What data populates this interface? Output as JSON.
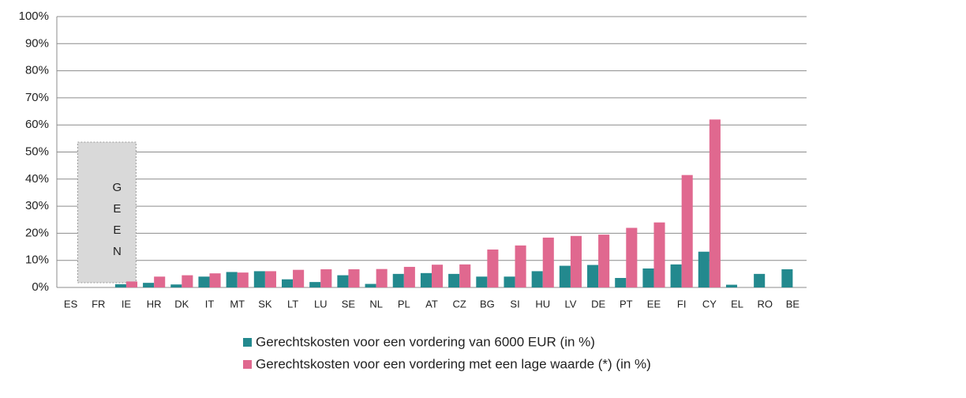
{
  "chart_data": {
    "type": "bar",
    "categories": [
      "ES",
      "FR",
      "IE",
      "HR",
      "DK",
      "IT",
      "MT",
      "SK",
      "LT",
      "LU",
      "SE",
      "NL",
      "PL",
      "AT",
      "CZ",
      "BG",
      "SI",
      "HU",
      "LV",
      "DE",
      "PT",
      "EE",
      "FI",
      "CY",
      "EL",
      "RO",
      "BE"
    ],
    "series": [
      {
        "name": "Gerechtskosten voor een vordering van 6000 EUR (in %)",
        "color": "#23898e",
        "values": [
          null,
          null,
          1.2,
          1.7,
          1.1,
          4,
          5.7,
          6,
          3,
          2,
          4.5,
          1.3,
          5,
          5.3,
          5,
          4,
          4,
          6,
          8,
          8.3,
          3.5,
          7,
          8.5,
          13.2,
          1,
          5,
          6.7
        ]
      },
      {
        "name": "Gerechtskosten voor een vordering met een lage waarde (*) (in %)",
        "color": "#e0688f",
        "values": [
          null,
          null,
          2.2,
          4,
          4.5,
          5.2,
          5.5,
          6,
          6.5,
          6.7,
          6.7,
          6.8,
          7.6,
          8.4,
          8.5,
          14,
          15.5,
          18.4,
          19,
          19.5,
          22,
          24,
          41.5,
          62,
          null,
          null,
          null
        ]
      }
    ],
    "annotation": "GEEN",
    "ylim": [
      0,
      100
    ],
    "yticks": [
      {
        "value": 0,
        "label": "0%"
      },
      {
        "value": 10,
        "label": "10%"
      },
      {
        "value": 20,
        "label": "20%"
      },
      {
        "value": 30,
        "label": "30%"
      },
      {
        "value": 40,
        "label": "40%"
      },
      {
        "value": 50,
        "label": "50%"
      },
      {
        "value": 60,
        "label": "60%"
      },
      {
        "value": 70,
        "label": "70%"
      },
      {
        "value": 80,
        "label": "80%"
      },
      {
        "value": 90,
        "label": "90%"
      },
      {
        "value": 100,
        "label": "100%"
      }
    ],
    "grid": true,
    "legend": "bottom"
  }
}
